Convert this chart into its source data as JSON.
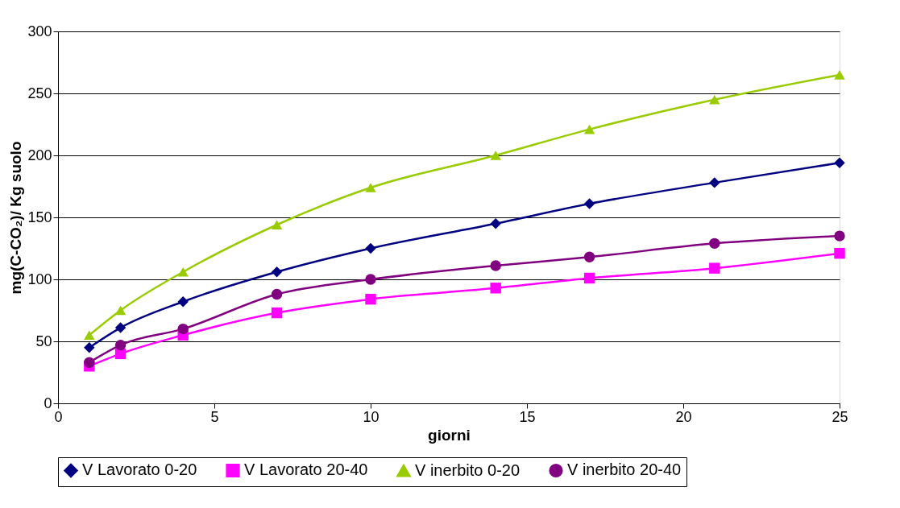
{
  "chart_data": {
    "type": "line",
    "xlabel": "giorni",
    "ylabel": "mg(C-CO₂)/ Kg suolo",
    "x": [
      1,
      2,
      4,
      7,
      10,
      14,
      17,
      21,
      25
    ],
    "xlim": [
      0,
      25
    ],
    "xticks": [
      0,
      5,
      10,
      15,
      20,
      25
    ],
    "ylim": [
      0,
      300
    ],
    "yticks": [
      0,
      50,
      100,
      150,
      200,
      250,
      300
    ],
    "grid": "y",
    "legend": "bottom",
    "line_style": "solid",
    "series": [
      {
        "name": "V Lavorato 0-20",
        "color": "#000080",
        "marker": "diamond",
        "values": [
          45,
          61,
          82,
          106,
          125,
          145,
          161,
          178,
          194
        ]
      },
      {
        "name": "V Lavorato 20-40",
        "color": "#ff00ff",
        "marker": "square",
        "values": [
          30,
          40,
          55,
          73,
          84,
          93,
          101,
          109,
          121
        ]
      },
      {
        "name": "V inerbito 0-20",
        "color": "#99cc00",
        "marker": "triangle",
        "values": [
          55,
          75,
          106,
          144,
          174,
          200,
          221,
          245,
          265
        ]
      },
      {
        "name": "V inerbito 20-40",
        "color": "#800080",
        "marker": "circle",
        "values": [
          33,
          47,
          60,
          88,
          100,
          111,
          118,
          129,
          135
        ]
      }
    ]
  }
}
